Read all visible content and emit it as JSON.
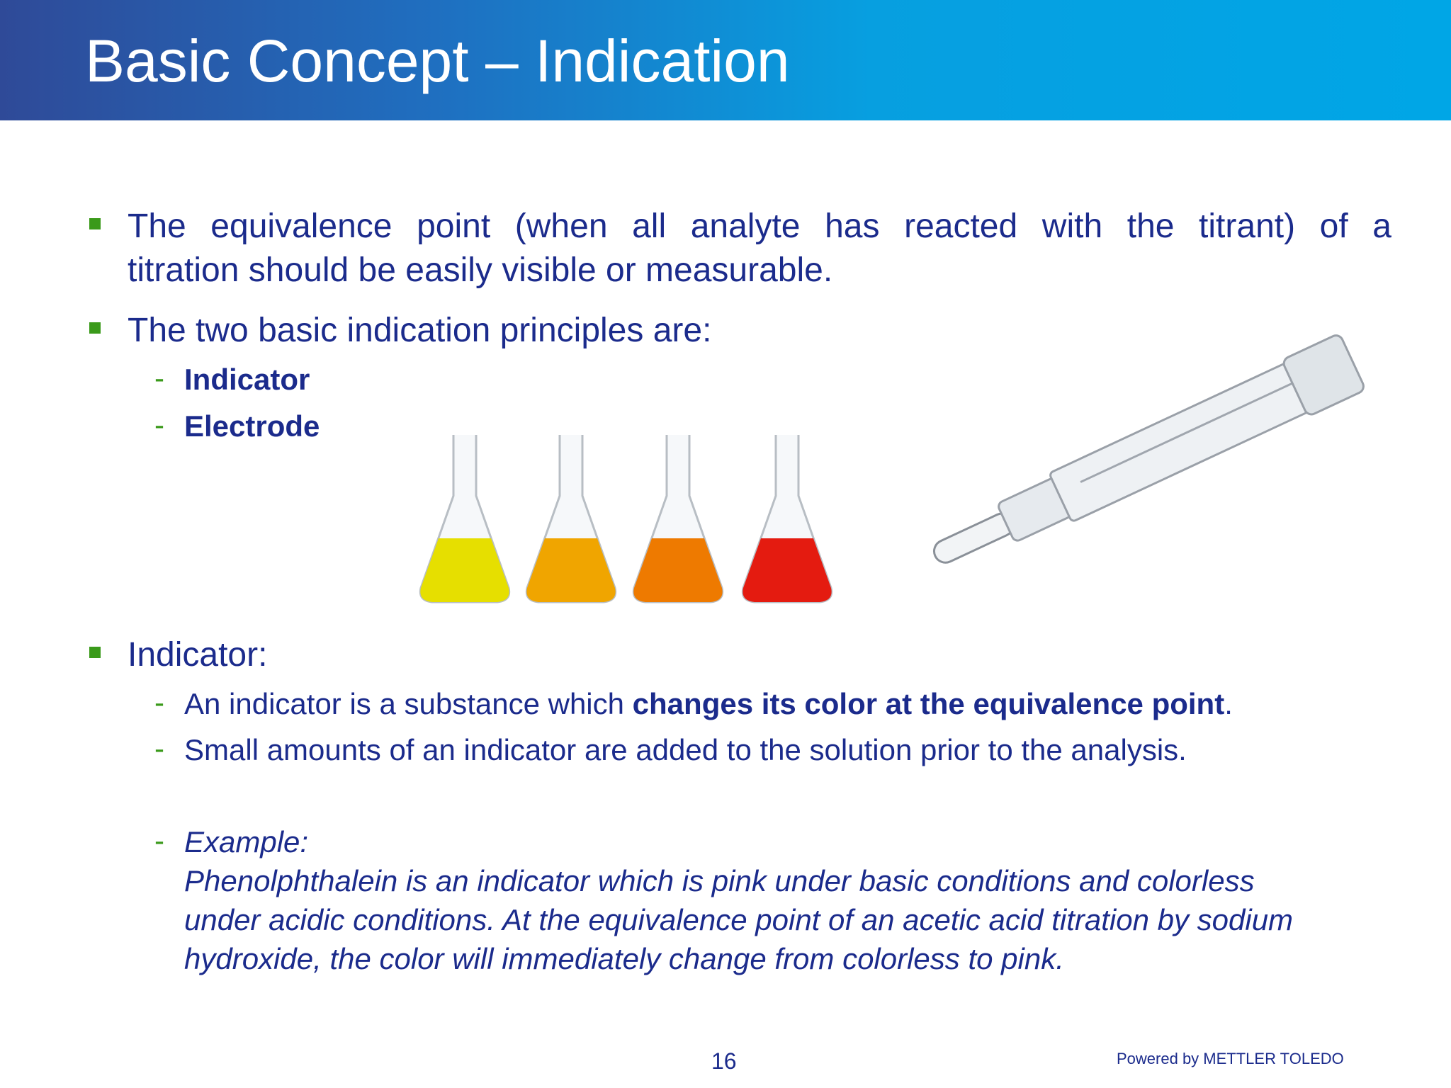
{
  "header": {
    "title": "Basic Concept – Indication"
  },
  "bullets": [
    {
      "lines": [
        "The equivalence point (when all analyte has reacted with the titrant) of a",
        "titration should be easily visible or measurable."
      ]
    },
    {
      "lines": [
        "The two basic indication principles are:"
      ],
      "items": [
        "Indicator",
        "Electrode"
      ]
    },
    {
      "lines": [
        "Indicator:"
      ],
      "items": [
        {
          "before": "An indicator is a substance which ",
          "bold": "changes its color at the equivalence point",
          "after": "."
        },
        {
          "before": "Small amounts of an indicator are added to the solution prior to the analysis."
        }
      ],
      "example": {
        "label": "Example:",
        "lines": [
          "Phenolphthalein is an indicator which is pink under basic conditions and colorless",
          "under acidic conditions. At the equivalence point of an acetic acid titration by sodium",
          "hydroxide, the color will immediately change from colorless to pink."
        ]
      }
    }
  ],
  "footer": {
    "page": "16",
    "brand": "Powered by METTLER TOLEDO"
  }
}
